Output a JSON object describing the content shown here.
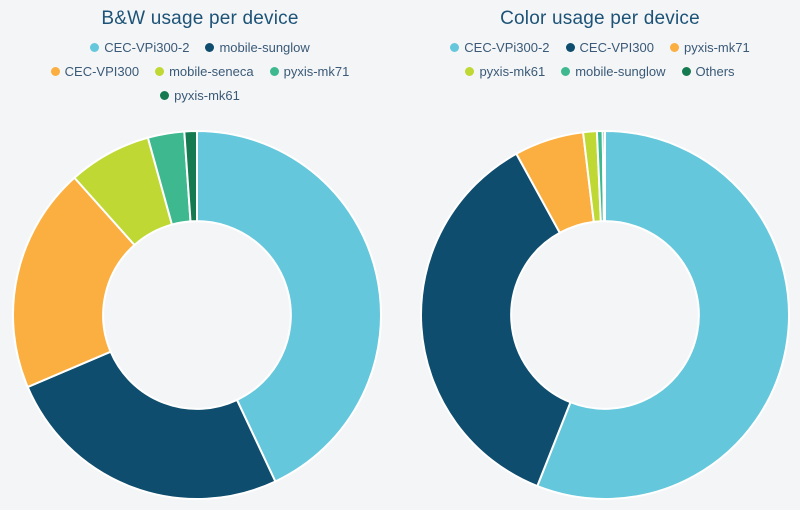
{
  "page": {
    "background_color": "#f4f5f7",
    "title_color": "#1d5377",
    "legend_text_color": "#3a5a77",
    "slice_gap_color": "#ffffff"
  },
  "chart_data": [
    {
      "type": "donut",
      "title": "B&W usage per device",
      "unit": "percent",
      "start_angle_deg": 0,
      "direction": "clockwise",
      "inner_radius_ratio": 0.51,
      "legend_position": "top",
      "segments": [
        {
          "label": "CEC-VPi300-2",
          "value": 43.0,
          "color": "#64c7db"
        },
        {
          "label": "mobile-sunglow",
          "value": 25.6,
          "color": "#0e4d6e"
        },
        {
          "label": "CEC-VPI300",
          "value": 19.8,
          "color": "#fbaf40"
        },
        {
          "label": "mobile-seneca",
          "value": 7.3,
          "color": "#c0d834"
        },
        {
          "label": "pyxis-mk71",
          "value": 3.2,
          "color": "#3eb98f"
        },
        {
          "label": "pyxis-mk61",
          "value": 1.1,
          "color": "#157a50"
        }
      ],
      "legend_rows": [
        [
          "CEC-VPi300-2",
          "mobile-sunglow"
        ],
        [
          "CEC-VPI300",
          "mobile-seneca",
          "pyxis-mk71"
        ],
        [
          "pyxis-mk61"
        ]
      ]
    },
    {
      "type": "donut",
      "title": "Color usage per device",
      "unit": "percent",
      "start_angle_deg": 0,
      "direction": "clockwise",
      "inner_radius_ratio": 0.51,
      "legend_position": "top",
      "segments": [
        {
          "label": "CEC-VPi300-2",
          "value": 56.0,
          "color": "#64c7db"
        },
        {
          "label": "CEC-VPI300",
          "value": 36.0,
          "color": "#0e4d6e"
        },
        {
          "label": "pyxis-mk71",
          "value": 6.1,
          "color": "#fbaf40"
        },
        {
          "label": "pyxis-mk61",
          "value": 1.2,
          "color": "#c0d834"
        },
        {
          "label": "mobile-sunglow",
          "value": 0.5,
          "color": "#3eb98f"
        },
        {
          "label": "Others",
          "value": 0.2,
          "color": "#157a50"
        }
      ],
      "legend_rows": [
        [
          "CEC-VPi300-2",
          "CEC-VPI300",
          "pyxis-mk71"
        ],
        [
          "pyxis-mk61",
          "mobile-sunglow",
          "Others"
        ]
      ]
    }
  ]
}
